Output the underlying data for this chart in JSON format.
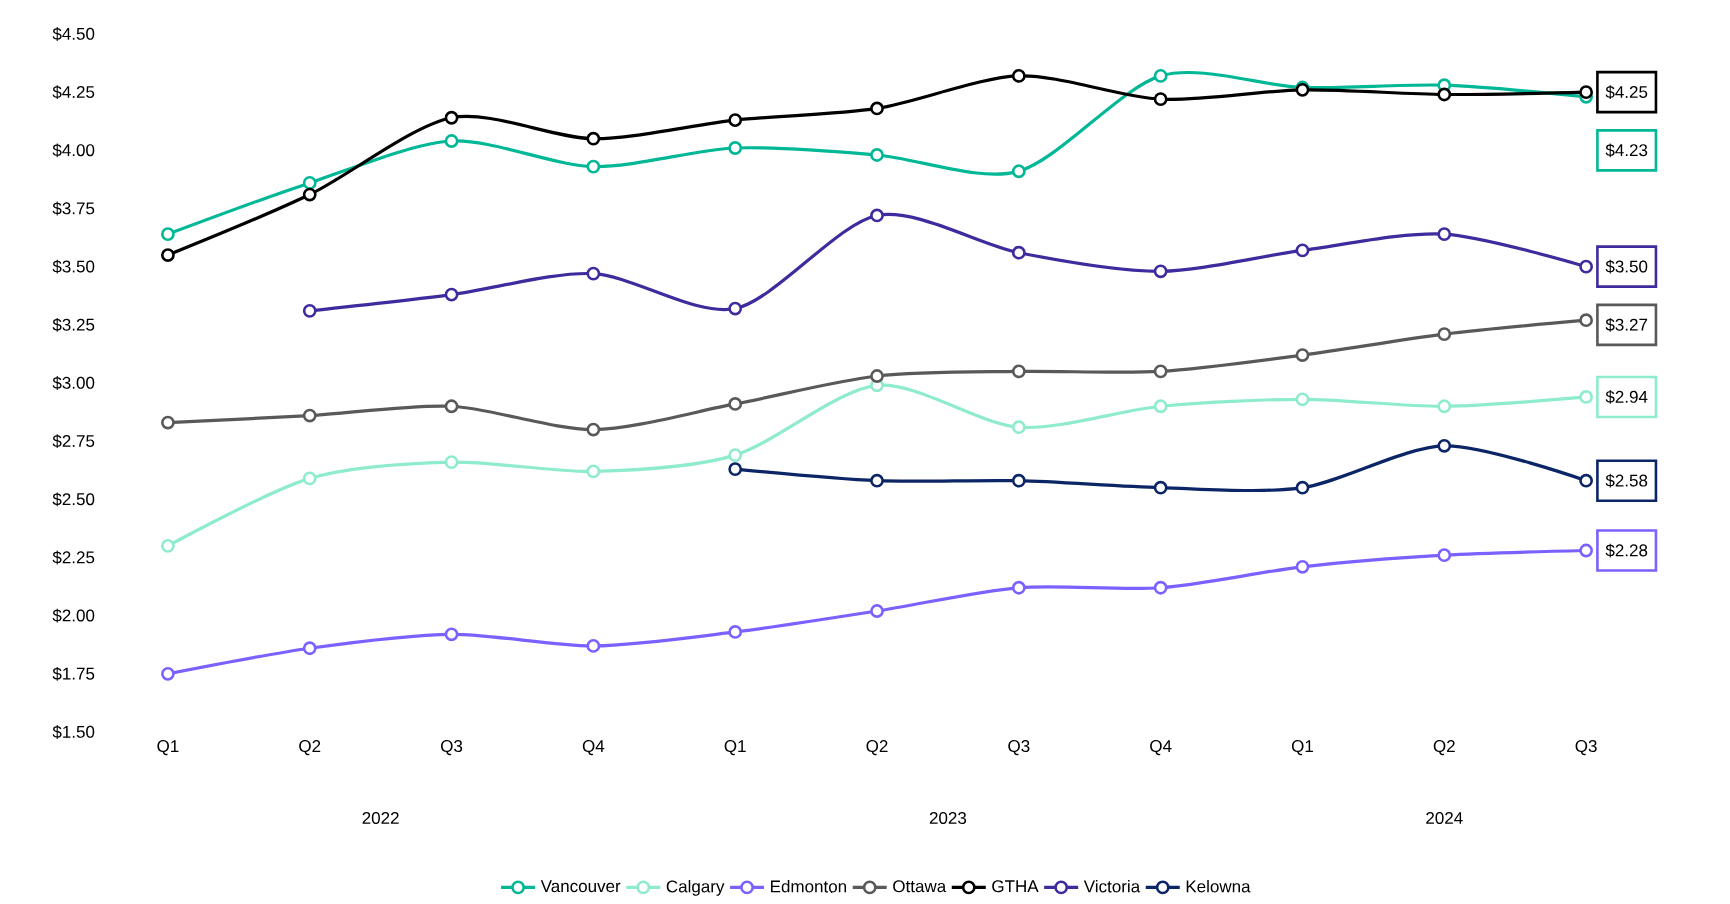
{
  "chart_data": {
    "type": "line",
    "categories": [
      "Q1",
      "Q2",
      "Q3",
      "Q4",
      "Q1",
      "Q2",
      "Q3",
      "Q4",
      "Q1",
      "Q2",
      "Q3"
    ],
    "ylim": [
      1.5,
      4.5
    ],
    "yticks": [
      {
        "value": 1.5,
        "label": "$1.50"
      },
      {
        "value": 1.75,
        "label": "$1.75"
      },
      {
        "value": 2.0,
        "label": "$2.00"
      },
      {
        "value": 2.25,
        "label": "$2.25"
      },
      {
        "value": 2.5,
        "label": "$2.50"
      },
      {
        "value": 2.75,
        "label": "$2.75"
      },
      {
        "value": 3.0,
        "label": "$3.00"
      },
      {
        "value": 3.25,
        "label": "$3.25"
      },
      {
        "value": 3.5,
        "label": "$3.50"
      },
      {
        "value": 3.75,
        "label": "$3.75"
      },
      {
        "value": 4.0,
        "label": "$4.00"
      },
      {
        "value": 4.25,
        "label": "$4.25"
      },
      {
        "value": 4.5,
        "label": "$4.50"
      }
    ],
    "annotations": [
      "2022",
      "2023",
      "2024"
    ],
    "legend": "bottom",
    "marker": "circle",
    "series": [
      {
        "name": "Vancouver",
        "color": "#00b796",
        "values": [
          3.64,
          3.86,
          4.04,
          3.93,
          4.01,
          3.98,
          3.91,
          4.32,
          4.27,
          4.28,
          4.23
        ],
        "value_labels": [
          null,
          null,
          null,
          null,
          null,
          null,
          null,
          null,
          null,
          null,
          "$4.23"
        ]
      },
      {
        "name": "Calgary",
        "color": "#8eeccc",
        "values": [
          2.3,
          2.59,
          2.66,
          2.62,
          2.69,
          2.99,
          2.81,
          2.9,
          2.93,
          2.9,
          2.94
        ],
        "value_labels": [
          null,
          null,
          null,
          null,
          null,
          null,
          null,
          null,
          null,
          null,
          "$2.94"
        ]
      },
      {
        "name": "Edmonton",
        "color": "#7b61ff",
        "values": [
          1.75,
          1.86,
          1.92,
          1.87,
          1.93,
          2.02,
          2.12,
          2.12,
          2.21,
          2.26,
          2.28
        ],
        "value_labels": [
          null,
          null,
          null,
          null,
          null,
          null,
          null,
          null,
          null,
          null,
          "$2.28"
        ]
      },
      {
        "name": "Ottawa",
        "color": "#595959",
        "values": [
          2.83,
          2.86,
          2.9,
          2.8,
          2.91,
          3.03,
          3.05,
          3.05,
          3.12,
          3.21,
          3.27
        ],
        "value_labels": [
          null,
          null,
          null,
          null,
          null,
          null,
          null,
          null,
          null,
          null,
          "$3.27"
        ]
      },
      {
        "name": "GTHA",
        "color": "#000000",
        "values": [
          3.55,
          3.81,
          4.14,
          4.05,
          4.13,
          4.18,
          4.32,
          4.22,
          4.26,
          4.24,
          4.25
        ],
        "value_labels": [
          null,
          null,
          null,
          null,
          null,
          null,
          null,
          null,
          null,
          null,
          "$4.25"
        ]
      },
      {
        "name": "Victoria",
        "color": "#3f2a9e",
        "values": [
          null,
          3.31,
          3.38,
          3.47,
          3.32,
          3.72,
          3.56,
          3.48,
          3.57,
          3.64,
          3.5
        ],
        "value_labels": [
          null,
          null,
          null,
          null,
          null,
          null,
          null,
          null,
          null,
          null,
          "$3.50"
        ]
      },
      {
        "name": "Kelowna",
        "color": "#0b2566",
        "values": [
          null,
          null,
          null,
          null,
          2.63,
          2.58,
          2.58,
          2.55,
          2.55,
          2.73,
          2.58
        ],
        "value_labels": [
          null,
          null,
          null,
          null,
          null,
          null,
          null,
          null,
          null,
          null,
          "$2.58"
        ]
      }
    ]
  }
}
